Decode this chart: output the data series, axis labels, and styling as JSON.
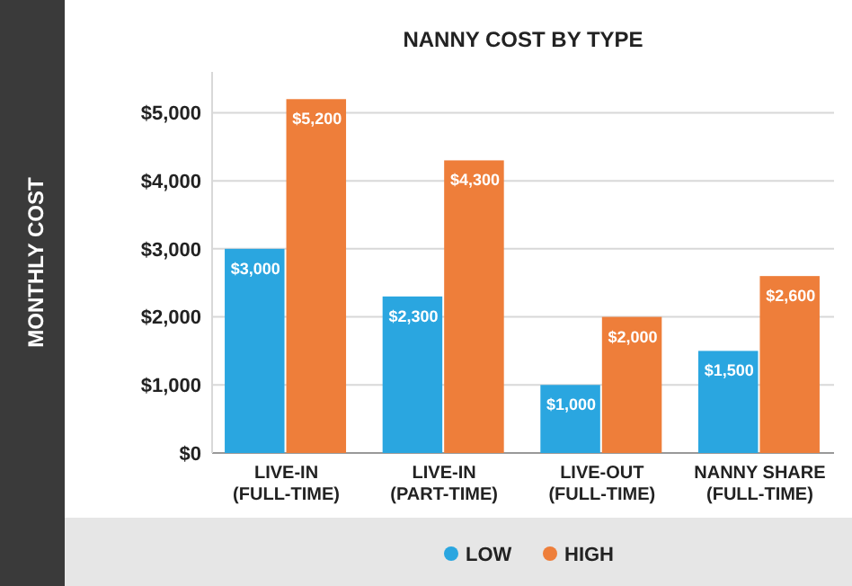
{
  "chart_data": {
    "type": "bar",
    "title": "NANNY COST BY TYPE",
    "ylabel": "MONTHLY COST",
    "categories": [
      "LIVE-IN (FULL-TIME)",
      "LIVE-IN (PART-TIME)",
      "LIVE-OUT (FULL-TIME)",
      "NANNY SHARE (FULL-TIME)"
    ],
    "series": [
      {
        "name": "LOW",
        "color": "#2aa6e0",
        "values": [
          3000,
          2300,
          1000,
          1500
        ],
        "value_labels": [
          "$3,000",
          "$2,300",
          "$1,000",
          "$1,500"
        ]
      },
      {
        "name": "HIGH",
        "color": "#ee7e3a",
        "values": [
          5200,
          4300,
          2000,
          2600
        ],
        "value_labels": [
          "$5,200",
          "$4,300",
          "$2,000",
          "$2,600"
        ]
      }
    ],
    "ylim": [
      0,
      5600
    ],
    "yticks": [
      {
        "value": 0,
        "label": "$0"
      },
      {
        "value": 1000,
        "label": "$1,000"
      },
      {
        "value": 2000,
        "label": "$2,000"
      },
      {
        "value": 3000,
        "label": "$3,000"
      },
      {
        "value": 4000,
        "label": "$4,000"
      },
      {
        "value": 5000,
        "label": "$5,000"
      }
    ],
    "grid": "y",
    "legend": "bottom"
  }
}
